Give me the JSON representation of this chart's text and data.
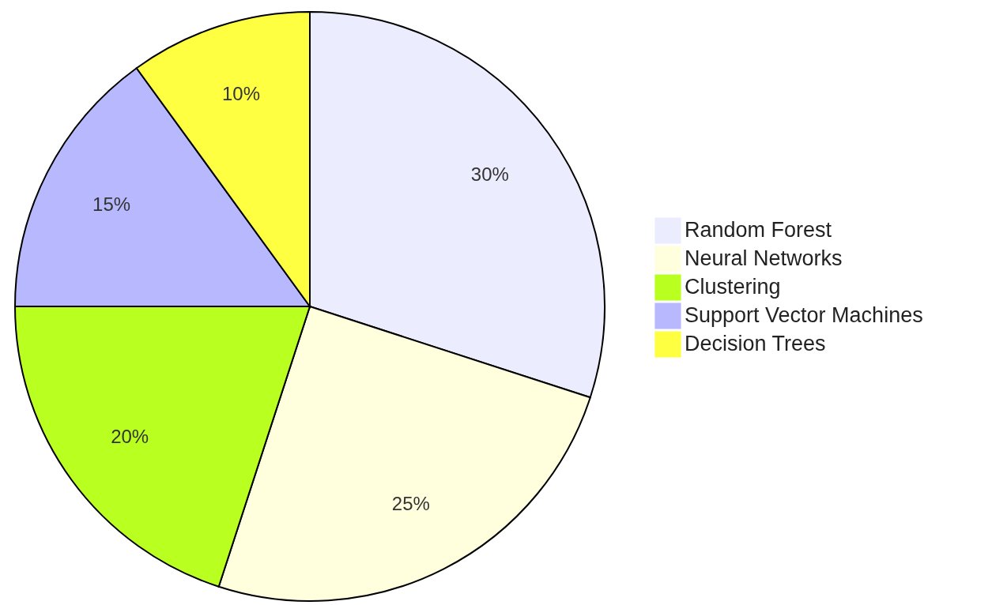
{
  "chart_data": {
    "type": "pie",
    "categories": [
      "Random Forest",
      "Neural Networks",
      "Clustering",
      "Support Vector Machines",
      "Decision Trees"
    ],
    "values": [
      30,
      25,
      20,
      15,
      10
    ],
    "colors": [
      "#ececff",
      "#ffffde",
      "#b9ff20",
      "#b8b8ff",
      "#ffff42"
    ],
    "value_labels": [
      "30%",
      "25%",
      "20%",
      "15%",
      "10%"
    ],
    "legend": "right"
  }
}
